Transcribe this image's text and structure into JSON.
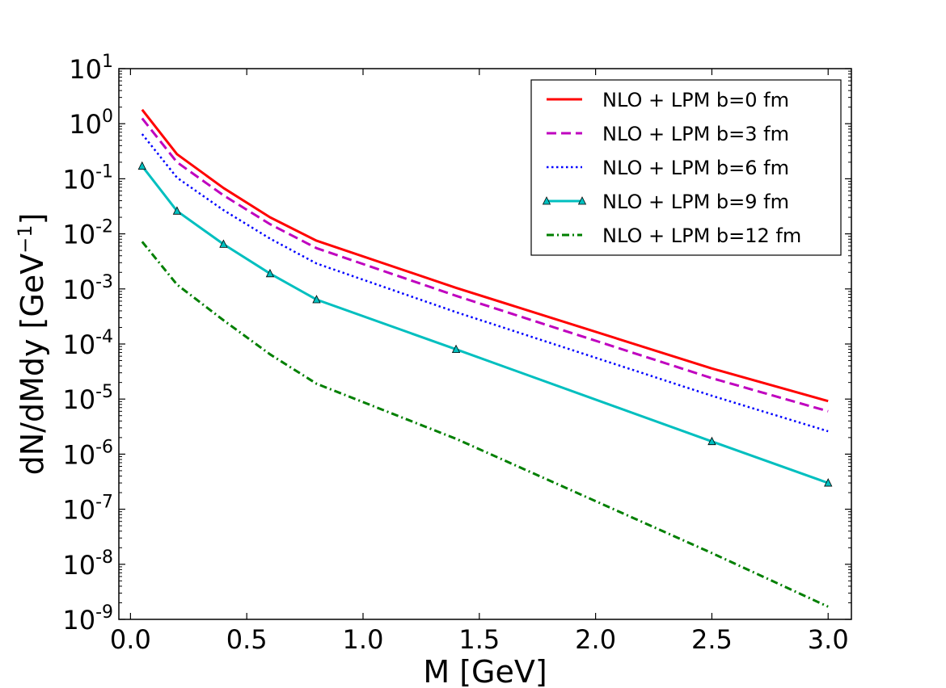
{
  "chart_data": {
    "type": "line",
    "title": "",
    "xlabel": "M [GeV]",
    "ylabel_main": "dN/dMdy [GeV",
    "ylabel_sup": "−1",
    "ylabel_close": "]",
    "xlim": [
      -0.05,
      3.1
    ],
    "ylim_exp": [
      -9,
      1
    ],
    "yscale": "log",
    "xticks": [
      0.0,
      0.5,
      1.0,
      1.5,
      2.0,
      2.5,
      3.0
    ],
    "xtick_labels": [
      "0.0",
      "0.5",
      "1.0",
      "1.5",
      "2.0",
      "2.5",
      "3.0"
    ],
    "ytick_exps": [
      1,
      0,
      -1,
      -2,
      -3,
      -4,
      -5,
      -6,
      -7,
      -8,
      -9
    ],
    "ytick_base": "10",
    "ytick_exp_labels": [
      "1",
      "0",
      "-1",
      "-2",
      "-3",
      "-4",
      "-5",
      "-6",
      "-7",
      "-8",
      "-9"
    ],
    "legend_position": "top-right",
    "series": [
      {
        "name": "NLO + LPM b=0 fm",
        "color": "#ff0000",
        "style": "solid",
        "marker": "none",
        "x": [
          0.05,
          0.2,
          0.4,
          0.6,
          0.8,
          1.4,
          2.5,
          3.0
        ],
        "y": [
          1.8,
          0.28,
          0.068,
          0.02,
          0.0075,
          0.00105,
          3.6e-05,
          9.2e-06
        ]
      },
      {
        "name": "NLO + LPM b=3 fm",
        "color": "#bf00bf",
        "style": "dashed",
        "marker": "none",
        "x": [
          0.05,
          0.2,
          0.4,
          0.6,
          0.8,
          1.4,
          2.5,
          3.0
        ],
        "y": [
          1.25,
          0.2,
          0.05,
          0.015,
          0.0055,
          0.00075,
          2.4e-05,
          6e-06
        ]
      },
      {
        "name": "NLO + LPM b=6 fm",
        "color": "#0000ff",
        "style": "dotted",
        "marker": "none",
        "x": [
          0.05,
          0.2,
          0.4,
          0.6,
          0.8,
          1.4,
          2.5,
          3.0
        ],
        "y": [
          0.65,
          0.105,
          0.027,
          0.0082,
          0.0029,
          0.00038,
          1.15e-05,
          2.6e-06
        ]
      },
      {
        "name": "NLO + LPM b=9 fm",
        "color": "#00bfbf",
        "style": "solid",
        "marker": "triangle",
        "x": [
          0.05,
          0.2,
          0.4,
          0.6,
          0.8,
          1.4,
          2.5,
          3.0
        ],
        "y": [
          0.17,
          0.026,
          0.0065,
          0.0019,
          0.00064,
          8e-05,
          1.7e-06,
          3e-07
        ]
      },
      {
        "name": "NLO + LPM b=12 fm",
        "color": "#007f00",
        "style": "dashdot",
        "marker": "none",
        "x": [
          0.05,
          0.2,
          0.4,
          0.6,
          0.8,
          1.4,
          2.5,
          3.0
        ],
        "y": [
          0.0072,
          0.0012,
          0.00027,
          6.5e-05,
          1.9e-05,
          1.9e-06,
          1.6e-08,
          1.7e-09
        ]
      }
    ]
  }
}
